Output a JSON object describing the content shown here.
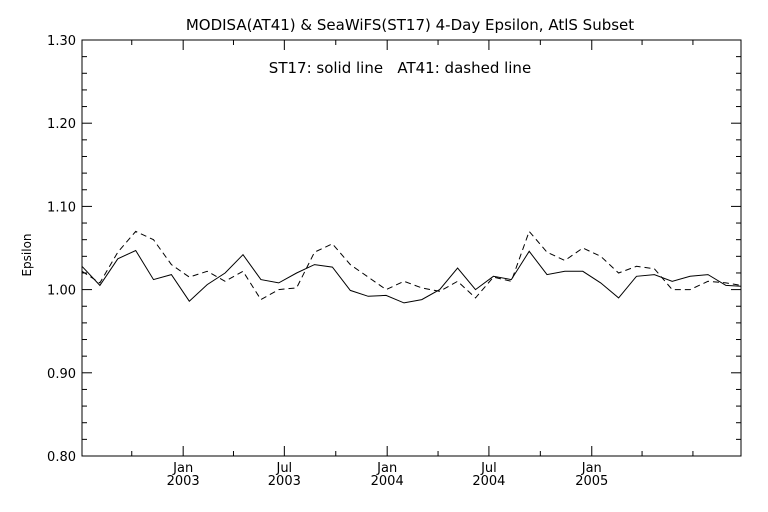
{
  "chart_data": {
    "type": "line",
    "title": "MODISA(AT41) & SeaWiFS(ST17) 4-Day Epsilon, AtlS Subset",
    "annotation": "ST17: solid line   AT41: dashed line",
    "xlabel": "",
    "ylabel": "Epsilon",
    "xlim": [
      "2002-07-04",
      "2005-09-25"
    ],
    "ylim": [
      0.8,
      1.3
    ],
    "y_ticks": [
      "0.80",
      "0.90",
      "1.00",
      "1.10",
      "1.20",
      "1.30"
    ],
    "x_ticks": [
      {
        "date": "2003-01-01",
        "line1": "Jan",
        "line2": "2003"
      },
      {
        "date": "2003-07-01",
        "line1": "Jul",
        "line2": "2003"
      },
      {
        "date": "2004-01-01",
        "line1": "Jan",
        "line2": "2004"
      },
      {
        "date": "2004-07-01",
        "line1": "Jul",
        "line2": "2004"
      },
      {
        "date": "2005-01-01",
        "line1": "Jan",
        "line2": "2005"
      }
    ],
    "x": [
      "2002-07-04",
      "2002-08-05",
      "2002-09-06",
      "2002-10-08",
      "2002-11-09",
      "2002-12-11",
      "2003-01-12",
      "2003-02-13",
      "2003-03-17",
      "2003-04-18",
      "2003-05-20",
      "2003-06-21",
      "2003-07-23",
      "2003-08-24",
      "2003-09-25",
      "2003-10-27",
      "2003-11-28",
      "2003-12-30",
      "2004-01-31",
      "2004-03-03",
      "2004-04-04",
      "2004-05-06",
      "2004-06-07",
      "2004-07-09",
      "2004-08-10",
      "2004-09-11",
      "2004-10-13",
      "2004-11-14",
      "2004-12-16",
      "2005-01-17",
      "2005-02-18",
      "2005-03-22",
      "2005-04-23",
      "2005-05-25",
      "2005-06-26",
      "2005-07-28",
      "2005-08-29",
      "2005-09-25"
    ],
    "series": [
      {
        "name": "ST17",
        "style": "solid",
        "values": [
          1.028,
          1.005,
          1.037,
          1.047,
          1.012,
          1.018,
          0.986,
          1.006,
          1.02,
          1.042,
          1.012,
          1.008,
          1.02,
          1.03,
          1.027,
          0.999,
          0.992,
          0.993,
          0.984,
          0.988,
          1.0,
          1.026,
          1.0,
          1.016,
          1.012,
          1.046,
          1.018,
          1.022,
          1.022,
          1.008,
          0.99,
          1.016,
          1.018,
          1.01,
          1.016,
          1.018,
          1.005,
          1.004
        ]
      },
      {
        "name": "AT41",
        "style": "dashed",
        "values": [
          1.022,
          1.008,
          1.045,
          1.07,
          1.06,
          1.03,
          1.015,
          1.022,
          1.01,
          1.022,
          0.988,
          1.0,
          1.002,
          1.045,
          1.055,
          1.03,
          1.015,
          1.0,
          1.01,
          1.002,
          0.998,
          1.01,
          0.99,
          1.015,
          1.01,
          1.07,
          1.045,
          1.035,
          1.05,
          1.04,
          1.02,
          1.028,
          1.025,
          1.0,
          1.0,
          1.01,
          1.008,
          1.005
        ]
      }
    ],
    "grid": false,
    "legend": "none"
  }
}
